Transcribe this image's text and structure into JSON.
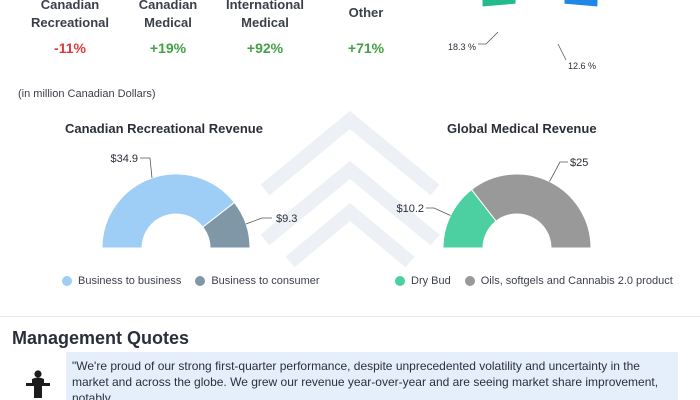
{
  "metrics": [
    {
      "label_line1": "Canadian",
      "label_line2": "Recreational",
      "change": "-11%",
      "trend": "neg"
    },
    {
      "label_line1": "Canadian",
      "label_line2": "Medical",
      "change": "+19%",
      "trend": "pos"
    },
    {
      "label_line1": "International",
      "label_line2": "Medical",
      "change": "+92%",
      "trend": "pos"
    },
    {
      "label_line1": "Other",
      "label_line2": "",
      "change": "+71%",
      "trend": "pos"
    }
  ],
  "unit_note": "(in million Canadian Dollars)",
  "section_title": "Management Quotes",
  "quote": "\"We're proud of our strong first-quarter performance, despite unprecedented volatility and uncertainty in the market and across the globe. We grew our revenue year-over-year and are seeing market share improvement, notably",
  "colors": {
    "neg": "#e0393e",
    "pos": "#43a047",
    "b2b": "#9ecdf5",
    "b2c": "#7f97a6",
    "dry_bud": "#4ccfa1",
    "oils": "#999999",
    "top_teal": "#21bb8e",
    "top_gray": "#5a5d60",
    "top_blue": "#1f88e6"
  },
  "chart_data": [
    {
      "type": "pie",
      "title": "",
      "slices": [
        {
          "value": 18.3,
          "label": "18.3 %",
          "color": "#21bb8e"
        },
        {
          "value": 12.6,
          "label": "12.6 %",
          "color": "#5a5d60"
        },
        {
          "value": null,
          "label": "",
          "color": "#1f88e6"
        }
      ]
    },
    {
      "type": "pie",
      "title": "Canadian Recreational Revenue",
      "slices": [
        {
          "name": "Business to business",
          "value": 34.9,
          "label": "$34.9",
          "color": "#9ecdf5"
        },
        {
          "name": "Business to consumer",
          "value": 9.3,
          "label": "$9.3",
          "color": "#7f97a6"
        }
      ]
    },
    {
      "type": "pie",
      "title": "Global Medical Revenue",
      "slices": [
        {
          "name": "Dry Bud",
          "value": 10.2,
          "label": "$10.2",
          "color": "#4ccfa1"
        },
        {
          "name": "Oils, softgels and Cannabis 2.0 product",
          "value": 25,
          "label": "$25",
          "color": "#999999"
        }
      ]
    }
  ]
}
